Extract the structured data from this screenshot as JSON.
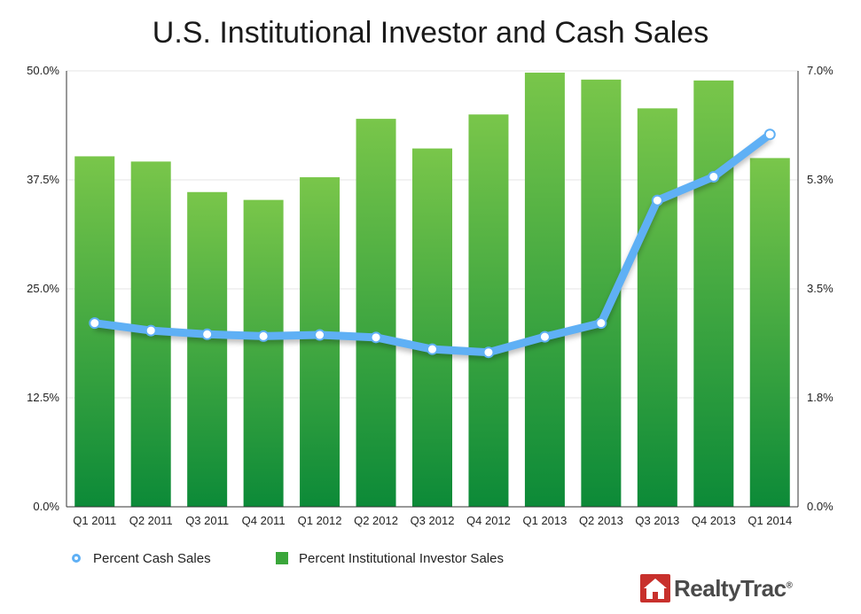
{
  "chart_data": {
    "type": "bar",
    "title": "U.S. Institutional Investor and Cash Sales",
    "categories": [
      "Q1 2011",
      "Q2 2011",
      "Q3 2011",
      "Q4 2011",
      "Q1 2012",
      "Q2 2012",
      "Q3 2012",
      "Q4 2012",
      "Q1 2013",
      "Q2 2013",
      "Q3 2013",
      "Q4 2013",
      "Q1 2014"
    ],
    "series": [
      {
        "name": "Percent Institutional Investor Sales",
        "type": "bar",
        "axis": "left",
        "color": "#3aa63a",
        "values": [
          40.2,
          39.6,
          36.1,
          35.2,
          37.8,
          44.5,
          41.1,
          45.0,
          49.8,
          49.0,
          45.7,
          48.9,
          40.0
        ]
      },
      {
        "name": "Percent Cash Sales",
        "type": "line",
        "axis": "right",
        "color": "#5fb0f5",
        "values": [
          2.95,
          2.83,
          2.77,
          2.74,
          2.76,
          2.72,
          2.53,
          2.48,
          2.73,
          2.95,
          4.92,
          5.3,
          5.98
        ]
      }
    ],
    "y_left": {
      "ticks": [
        "0.0%",
        "12.5%",
        "25.0%",
        "37.5%",
        "50.0%"
      ],
      "ylim": [
        0,
        50
      ]
    },
    "y_right": {
      "ticks": [
        "0.0%",
        "1.8%",
        "3.5%",
        "5.3%",
        "7.0%"
      ],
      "ylim": [
        0,
        7
      ]
    },
    "grid": true,
    "legend": "bottom-left"
  },
  "logo": {
    "text": "RealtyTrac",
    "mark": "®"
  }
}
